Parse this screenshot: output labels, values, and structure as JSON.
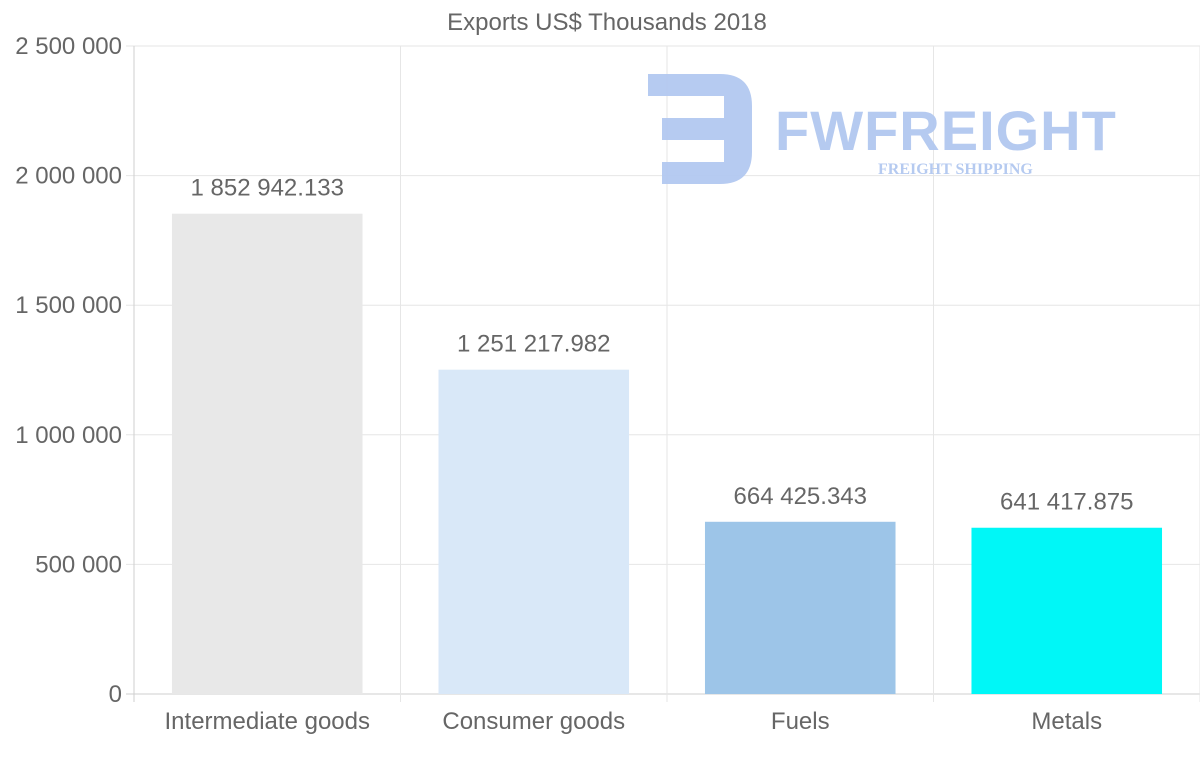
{
  "chart_data": {
    "type": "bar",
    "title": "Exports US$ Thousands 2018",
    "categories": [
      "Intermediate goods",
      "Consumer goods",
      "Fuels",
      "Metals"
    ],
    "values": [
      1852942.133,
      1251217.982,
      664425.343,
      641417.875
    ],
    "value_labels": [
      "1 852 942.133",
      "1 251 217.982",
      "664 425.343",
      "641 417.875"
    ],
    "colors": [
      "#e8e8e8",
      "#d9e8f8",
      "#9dc5e8",
      "#00f7f7"
    ],
    "ylim": [
      0,
      2500000
    ],
    "yticks": [
      0,
      500000,
      1000000,
      1500000,
      2000000,
      2500000
    ],
    "ytick_labels": [
      "0",
      "500 000",
      "1 000 000",
      "1 500 000",
      "2 000 000",
      "2 500 000"
    ],
    "grid": true,
    "xlabel": "",
    "ylabel": ""
  },
  "watermark": {
    "name": "FWFREIGHT",
    "tagline": "FREIGHT SHIPPING",
    "color": "#b2c8f0"
  }
}
